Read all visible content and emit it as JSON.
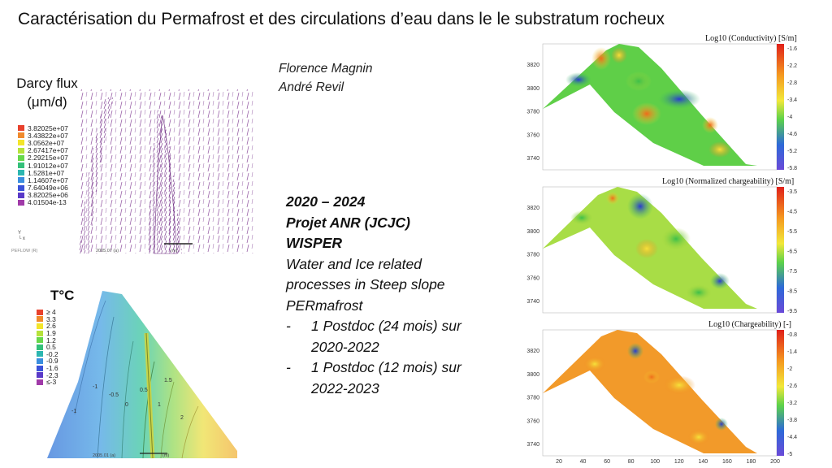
{
  "slide_title": "Caractérisation du Permafrost et des circulations d’eau dans le le substratum rocheux",
  "authors": [
    "Florence Magnin",
    "André Revil"
  ],
  "darcy": {
    "title_line1": "Darcy flux",
    "title_line2": "(μm/d)",
    "legend": [
      {
        "label": "3.82025e+07",
        "color": "#e8412c"
      },
      {
        "label": "3.43822e+07",
        "color": "#f08a2c"
      },
      {
        "label": "3.0562e+07",
        "color": "#f3e52a"
      },
      {
        "label": "2.67417e+07",
        "color": "#b6e23a"
      },
      {
        "label": "2.29215e+07",
        "color": "#66d84a"
      },
      {
        "label": "1.91012e+07",
        "color": "#34c07a"
      },
      {
        "label": "1.5281e+07",
        "color": "#2cb6b0"
      },
      {
        "label": "1.14607e+07",
        "color": "#3a8ede"
      },
      {
        "label": "7.64049e+06",
        "color": "#3a52d8"
      },
      {
        "label": "3.82025e+06",
        "color": "#5a3ac8"
      },
      {
        "label": "4.01504e-13",
        "color": "#a03aa8"
      }
    ],
    "axis_label": "x",
    "software": "PEFLOW (R)",
    "date": "2005.07 (a)",
    "scale": "(m)"
  },
  "temperature": {
    "title": "T°C",
    "legend": [
      {
        "label": "≥ 4",
        "color": "#e8412c"
      },
      {
        "label": "3.3",
        "color": "#f08a2c"
      },
      {
        "label": "2.6",
        "color": "#f3e52a"
      },
      {
        "label": "1.9",
        "color": "#b6e23a"
      },
      {
        "label": "1.2",
        "color": "#66d84a"
      },
      {
        "label": "0.5",
        "color": "#34c07a"
      },
      {
        "label": "-0.2",
        "color": "#2cb6b0"
      },
      {
        "label": "-0.9",
        "color": "#3a8ede"
      },
      {
        "label": "-1.6",
        "color": "#3a52d8"
      },
      {
        "label": "-2.3",
        "color": "#5a3ac8"
      },
      {
        "label": "≤-3",
        "color": "#a03aa8"
      }
    ],
    "contour_labels": [
      "-1",
      "-1",
      "-0.5",
      "0",
      "0.5",
      "1",
      "1.5",
      "2"
    ],
    "date": "2005.01 (a)",
    "scale": "(m)"
  },
  "project": {
    "line1": "2020 – 2024",
    "line2": "Projet ANR (JCJC)",
    "line3": "WISPER",
    "desc1": "Water and Ice related",
    "desc2": "processes in Steep slope",
    "desc3": "PERmafrost",
    "bullets": [
      {
        "dash": "-",
        "line1": "1 Postdoc (24 mois) sur",
        "line2": "2020-2022"
      },
      {
        "dash": "-",
        "line1": "1 Postdoc (12 mois) sur",
        "line2": "2022-2023"
      }
    ]
  },
  "panels": [
    {
      "title": "Log10 (Conductivity) [S/m]",
      "colorbar": [
        "-1.6",
        "-2.2",
        "-2.8",
        "-3.4",
        "-4",
        "-4.6",
        "-5.2",
        "-5.8"
      ]
    },
    {
      "title": "Log10 (Normalized chargeability) [S/m]",
      "colorbar": [
        "-3.5",
        "-4.5",
        "-5.5",
        "-6.5",
        "-7.5",
        "-8.5",
        "-9.5"
      ]
    },
    {
      "title": "Log10 (Chargeability) [-]",
      "colorbar": [
        "-0.8",
        "-1.4",
        "-2",
        "-2.6",
        "-3.2",
        "-3.8",
        "-4.4",
        "-5"
      ]
    }
  ],
  "elevation_ticks": [
    "3820",
    "3800",
    "3780",
    "3760",
    "3740"
  ],
  "x_ticks": [
    "20",
    "40",
    "60",
    "80",
    "100",
    "120",
    "140",
    "160",
    "180",
    "200"
  ]
}
